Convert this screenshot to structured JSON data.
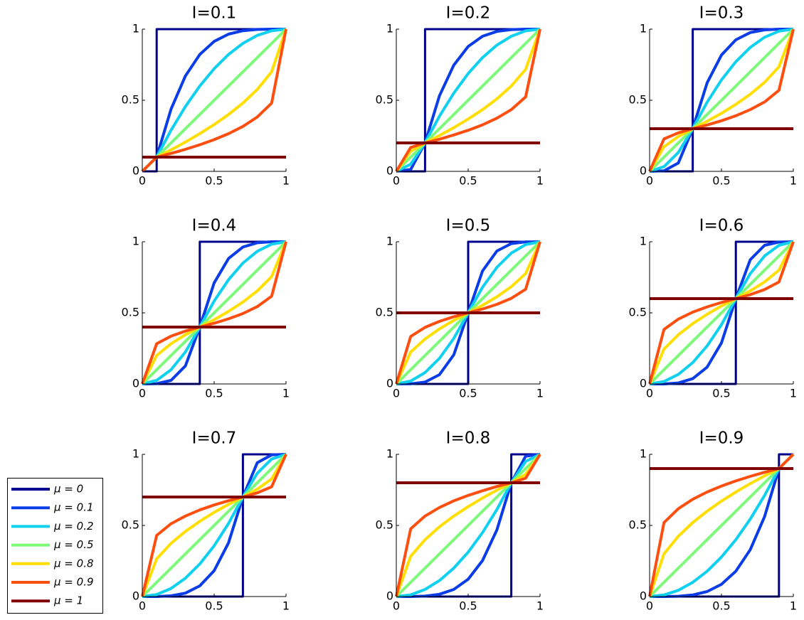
{
  "chart_data": [
    {
      "type": "line",
      "title": "I=0.1",
      "x": [
        0,
        0.1,
        0.2,
        0.3,
        0.4,
        0.5,
        0.6,
        0.7,
        0.8,
        0.9,
        1
      ],
      "xlim": [
        0,
        1
      ],
      "ylim": [
        0,
        1
      ],
      "xticks": [
        0,
        0.5,
        1
      ],
      "yticks": [
        0,
        0.5,
        1
      ],
      "series": [
        {
          "name": "μ = 0",
          "color": "#00008f",
          "x": [
            0,
            0.1,
            0.1,
            1
          ],
          "values": [
            0,
            0,
            1,
            1
          ]
        },
        {
          "name": "μ = 0.1",
          "color": "#0a3ce8",
          "values": [
            0,
            0.1,
            0.438,
            0.671,
            0.822,
            0.914,
            0.965,
            0.989,
            0.998,
            1,
            1
          ]
        },
        {
          "name": "μ = 0.2",
          "color": "#10d0f0",
          "values": [
            0,
            0.1,
            0.289,
            0.456,
            0.6,
            0.722,
            0.822,
            0.9,
            0.956,
            0.989,
            1
          ]
        },
        {
          "name": "μ = 0.5",
          "color": "#7dfa7a",
          "x": [
            0,
            1
          ],
          "values": [
            0,
            1
          ]
        },
        {
          "name": "μ = 0.8",
          "color": "#ffde00",
          "values": [
            0,
            0.1,
            0.151,
            0.206,
            0.265,
            0.329,
            0.4,
            0.48,
            0.576,
            0.7,
            1
          ]
        },
        {
          "name": "μ = 0.9",
          "color": "#ff4f10",
          "values": [
            0,
            0.1,
            0.126,
            0.155,
            0.187,
            0.223,
            0.265,
            0.316,
            0.382,
            0.48,
            1
          ]
        },
        {
          "name": "μ = 1",
          "color": "#800000",
          "x": [
            0,
            1
          ],
          "values": [
            0.1,
            0.1
          ]
        }
      ]
    },
    {
      "type": "line",
      "title": "I=0.2",
      "x": [
        0,
        0.1,
        0.2,
        0.3,
        0.4,
        0.5,
        0.6,
        0.7,
        0.8,
        0.9,
        1
      ],
      "xlim": [
        0,
        1
      ],
      "ylim": [
        0,
        1
      ],
      "xticks": [
        0,
        0.5,
        1
      ],
      "yticks": [
        0,
        0.5,
        1
      ],
      "series": [
        {
          "color": "#00008f",
          "x": [
            0,
            0.2,
            0.2,
            1
          ],
          "values": [
            0,
            0,
            1,
            1
          ]
        },
        {
          "color": "#0a3ce8",
          "values": [
            0,
            0.013,
            0.2,
            0.531,
            0.747,
            0.878,
            0.95,
            0.984,
            0.997,
            1,
            1
          ]
        },
        {
          "color": "#10d0f0",
          "values": [
            0,
            0.05,
            0.2,
            0.388,
            0.55,
            0.688,
            0.8,
            0.888,
            0.95,
            0.988,
            1
          ]
        },
        {
          "color": "#7dfa7a",
          "x": [
            0,
            1
          ],
          "values": [
            0,
            1
          ]
        },
        {
          "color": "#ffde00",
          "values": [
            0,
            0.141,
            0.2,
            0.252,
            0.307,
            0.368,
            0.434,
            0.51,
            0.6,
            0.717,
            1
          ]
        },
        {
          "color": "#ff4f10",
          "values": [
            0,
            0.168,
            0.2,
            0.226,
            0.256,
            0.289,
            0.327,
            0.374,
            0.434,
            0.524,
            1
          ]
        },
        {
          "color": "#800000",
          "x": [
            0,
            1
          ],
          "values": [
            0.2,
            0.2
          ]
        }
      ]
    },
    {
      "type": "line",
      "title": "I=0.3",
      "x": [
        0,
        0.1,
        0.2,
        0.3,
        0.4,
        0.5,
        0.6,
        0.7,
        0.8,
        0.9,
        1
      ],
      "xlim": [
        0,
        1
      ],
      "ylim": [
        0,
        1
      ],
      "xticks": [
        0,
        0.5,
        1
      ],
      "yticks": [
        0,
        0.5,
        1
      ],
      "series": [
        {
          "color": "#00008f",
          "x": [
            0,
            0.3,
            0.3,
            1
          ],
          "values": [
            0,
            0,
            1,
            1
          ]
        },
        {
          "color": "#0a3ce8",
          "values": [
            0,
            0.004,
            0.059,
            0.3,
            0.622,
            0.818,
            0.925,
            0.976,
            0.995,
            1,
            1
          ]
        },
        {
          "color": "#10d0f0",
          "values": [
            0,
            0.033,
            0.133,
            0.3,
            0.486,
            0.643,
            0.771,
            0.871,
            0.943,
            0.986,
            1
          ]
        },
        {
          "color": "#7dfa7a",
          "x": [
            0,
            1
          ],
          "values": [
            0,
            1
          ]
        },
        {
          "color": "#ffde00",
          "values": [
            0,
            0.173,
            0.245,
            0.3,
            0.352,
            0.408,
            0.471,
            0.542,
            0.626,
            0.735,
            1
          ]
        },
        {
          "color": "#ff4f10",
          "values": [
            0,
            0.228,
            0.271,
            0.3,
            0.326,
            0.356,
            0.391,
            0.434,
            0.488,
            0.57,
            1
          ]
        },
        {
          "color": "#800000",
          "x": [
            0,
            1
          ],
          "values": [
            0.3,
            0.3
          ]
        }
      ]
    },
    {
      "type": "line",
      "title": "I=0.4",
      "x": [
        0,
        0.1,
        0.2,
        0.3,
        0.4,
        0.5,
        0.6,
        0.7,
        0.8,
        0.9,
        1
      ],
      "xlim": [
        0,
        1
      ],
      "ylim": [
        0,
        1
      ],
      "xticks": [
        0,
        0.5,
        1
      ],
      "yticks": [
        0,
        0.5,
        1
      ],
      "series": [
        {
          "color": "#00008f",
          "x": [
            0,
            0.4,
            0.4,
            1
          ],
          "values": [
            0,
            0,
            1,
            1
          ]
        },
        {
          "color": "#0a3ce8",
          "values": [
            0,
            0.002,
            0.025,
            0.127,
            0.4,
            0.711,
            0.882,
            0.963,
            0.993,
            1,
            1
          ]
        },
        {
          "color": "#10d0f0",
          "values": [
            0,
            0.025,
            0.1,
            0.225,
            0.4,
            0.583,
            0.733,
            0.85,
            0.933,
            0.983,
            1
          ]
        },
        {
          "color": "#7dfa7a",
          "x": [
            0,
            1
          ],
          "values": [
            0,
            1
          ]
        },
        {
          "color": "#ffde00",
          "values": [
            0,
            0.2,
            0.283,
            0.346,
            0.4,
            0.452,
            0.51,
            0.576,
            0.654,
            0.755,
            1
          ]
        },
        {
          "color": "#ff4f10",
          "values": [
            0,
            0.283,
            0.336,
            0.372,
            0.4,
            0.427,
            0.458,
            0.495,
            0.544,
            0.617,
            1
          ]
        },
        {
          "color": "#800000",
          "x": [
            0,
            1
          ],
          "values": [
            0.4,
            0.4
          ]
        }
      ]
    },
    {
      "type": "line",
      "title": "I=0.5",
      "x": [
        0,
        0.1,
        0.2,
        0.3,
        0.4,
        0.5,
        0.6,
        0.7,
        0.8,
        0.9,
        1
      ],
      "xlim": [
        0,
        1
      ],
      "ylim": [
        0,
        1
      ],
      "xticks": [
        0,
        0.5,
        1
      ],
      "yticks": [
        0,
        0.5,
        1
      ],
      "series": [
        {
          "color": "#00008f",
          "x": [
            0,
            0.5,
            0.5,
            1
          ],
          "values": [
            0,
            0,
            1,
            1
          ]
        },
        {
          "color": "#0a3ce8",
          "values": [
            0,
            0.001,
            0.013,
            0.065,
            0.205,
            0.5,
            0.795,
            0.935,
            0.987,
            0.999,
            1
          ]
        },
        {
          "color": "#10d0f0",
          "values": [
            0,
            0.02,
            0.08,
            0.18,
            0.32,
            0.5,
            0.68,
            0.82,
            0.92,
            0.98,
            1
          ]
        },
        {
          "color": "#7dfa7a",
          "x": [
            0,
            1
          ],
          "values": [
            0,
            1
          ]
        },
        {
          "color": "#ffde00",
          "values": [
            0,
            0.224,
            0.316,
            0.387,
            0.447,
            0.5,
            0.553,
            0.613,
            0.684,
            0.776,
            1
          ]
        },
        {
          "color": "#ff4f10",
          "values": [
            0,
            0.334,
            0.398,
            0.44,
            0.473,
            0.5,
            0.527,
            0.56,
            0.602,
            0.666,
            1
          ]
        },
        {
          "color": "#800000",
          "x": [
            0,
            1
          ],
          "values": [
            0.5,
            0.5
          ]
        }
      ]
    },
    {
      "type": "line",
      "title": "I=0.6",
      "x": [
        0,
        0.1,
        0.2,
        0.3,
        0.4,
        0.5,
        0.6,
        0.7,
        0.8,
        0.9,
        1
      ],
      "xlim": [
        0,
        1
      ],
      "ylim": [
        0,
        1
      ],
      "xticks": [
        0,
        0.5,
        1
      ],
      "yticks": [
        0,
        0.5,
        1
      ],
      "series": [
        {
          "color": "#00008f",
          "x": [
            0,
            0.6,
            0.6,
            1
          ],
          "values": [
            0,
            0,
            1,
            1
          ]
        },
        {
          "color": "#0a3ce8",
          "values": [
            0,
            0,
            0.007,
            0.037,
            0.118,
            0.289,
            0.6,
            0.873,
            0.975,
            0.998,
            1
          ]
        },
        {
          "color": "#10d0f0",
          "values": [
            0,
            0.017,
            0.067,
            0.15,
            0.267,
            0.417,
            0.6,
            0.775,
            0.9,
            0.975,
            1
          ]
        },
        {
          "color": "#7dfa7a",
          "x": [
            0,
            1
          ],
          "values": [
            0,
            1
          ]
        },
        {
          "color": "#ffde00",
          "values": [
            0,
            0.245,
            0.346,
            0.424,
            0.49,
            0.548,
            0.6,
            0.654,
            0.717,
            0.8,
            1
          ]
        },
        {
          "color": "#ff4f10",
          "values": [
            0,
            0.383,
            0.456,
            0.505,
            0.542,
            0.573,
            0.6,
            0.628,
            0.664,
            0.717,
            1
          ]
        },
        {
          "color": "#800000",
          "x": [
            0,
            1
          ],
          "values": [
            0.6,
            0.6
          ]
        }
      ]
    },
    {
      "type": "line",
      "title": "I=0.7",
      "x": [
        0,
        0.1,
        0.2,
        0.3,
        0.4,
        0.5,
        0.6,
        0.7,
        0.8,
        0.9,
        1
      ],
      "xlim": [
        0,
        1
      ],
      "ylim": [
        0,
        1
      ],
      "xticks": [
        0,
        0.5,
        1
      ],
      "yticks": [
        0,
        0.5,
        1
      ],
      "series": [
        {
          "color": "#00008f",
          "x": [
            0,
            0.7,
            0.7,
            1
          ],
          "values": [
            0,
            0,
            1,
            1
          ]
        },
        {
          "color": "#0a3ce8",
          "values": [
            0,
            0,
            0.005,
            0.024,
            0.075,
            0.182,
            0.378,
            0.7,
            0.941,
            0.996,
            1
          ]
        },
        {
          "color": "#10d0f0",
          "values": [
            0,
            0.014,
            0.057,
            0.129,
            0.229,
            0.357,
            0.514,
            0.7,
            0.867,
            0.967,
            1
          ]
        },
        {
          "color": "#7dfa7a",
          "x": [
            0,
            1
          ],
          "values": [
            0,
            1
          ]
        },
        {
          "color": "#ffde00",
          "values": [
            0,
            0.265,
            0.374,
            0.458,
            0.529,
            0.592,
            0.648,
            0.7,
            0.755,
            0.827,
            1
          ]
        },
        {
          "color": "#ff4f10",
          "values": [
            0,
            0.43,
            0.512,
            0.566,
            0.609,
            0.644,
            0.674,
            0.7,
            0.729,
            0.772,
            1
          ]
        },
        {
          "color": "#800000",
          "x": [
            0,
            1
          ],
          "values": [
            0.7,
            0.7
          ]
        }
      ]
    },
    {
      "type": "line",
      "title": "I=0.8",
      "x": [
        0,
        0.1,
        0.2,
        0.3,
        0.4,
        0.5,
        0.6,
        0.7,
        0.8,
        0.9,
        1
      ],
      "xlim": [
        0,
        1
      ],
      "ylim": [
        0,
        1
      ],
      "xticks": [
        0,
        0.5,
        1
      ],
      "yticks": [
        0,
        0.5,
        1
      ],
      "series": [
        {
          "color": "#00008f",
          "x": [
            0,
            0.8,
            0.8,
            1
          ],
          "values": [
            0,
            0,
            1,
            1
          ]
        },
        {
          "color": "#0a3ce8",
          "values": [
            0,
            0,
            0.003,
            0.016,
            0.05,
            0.122,
            0.253,
            0.469,
            0.8,
            0.987,
            1
          ]
        },
        {
          "color": "#10d0f0",
          "values": [
            0,
            0.012,
            0.05,
            0.112,
            0.2,
            0.312,
            0.45,
            0.612,
            0.8,
            0.95,
            1
          ]
        },
        {
          "color": "#7dfa7a",
          "x": [
            0,
            1
          ],
          "values": [
            0,
            1
          ]
        },
        {
          "color": "#ffde00",
          "values": [
            0,
            0.283,
            0.4,
            0.49,
            0.566,
            0.632,
            0.693,
            0.748,
            0.8,
            0.859,
            1
          ]
        },
        {
          "color": "#ff4f10",
          "values": [
            0,
            0.476,
            0.566,
            0.626,
            0.673,
            0.711,
            0.744,
            0.774,
            0.8,
            0.832,
            1
          ]
        },
        {
          "color": "#800000",
          "x": [
            0,
            1
          ],
          "values": [
            0.8,
            0.8
          ]
        }
      ]
    },
    {
      "type": "line",
      "title": "I=0.9",
      "x": [
        0,
        0.1,
        0.2,
        0.3,
        0.4,
        0.5,
        0.6,
        0.7,
        0.8,
        0.9,
        1
      ],
      "xlim": [
        0,
        1
      ],
      "ylim": [
        0,
        1
      ],
      "xticks": [
        0,
        0.5,
        1
      ],
      "yticks": [
        0,
        0.5,
        1
      ],
      "series": [
        {
          "color": "#00008f",
          "x": [
            0,
            0.9,
            0.9,
            1
          ],
          "values": [
            0,
            0,
            1,
            1
          ]
        },
        {
          "color": "#0a3ce8",
          "values": [
            0,
            0,
            0.002,
            0.011,
            0.035,
            0.086,
            0.178,
            0.329,
            0.562,
            0.9,
            1
          ]
        },
        {
          "color": "#10d0f0",
          "values": [
            0,
            0.011,
            0.044,
            0.1,
            0.178,
            0.278,
            0.4,
            0.544,
            0.711,
            0.9,
            1
          ]
        },
        {
          "color": "#7dfa7a",
          "x": [
            0,
            1
          ],
          "values": [
            0,
            1
          ]
        },
        {
          "color": "#ffde00",
          "values": [
            0,
            0.3,
            0.424,
            0.52,
            0.6,
            0.671,
            0.735,
            0.794,
            0.849,
            0.9,
            1
          ]
        },
        {
          "color": "#ff4f10",
          "values": [
            0,
            0.52,
            0.618,
            0.684,
            0.735,
            0.777,
            0.813,
            0.845,
            0.874,
            0.9,
            1
          ]
        },
        {
          "color": "#800000",
          "x": [
            0,
            1
          ],
          "values": [
            0.9,
            0.9
          ]
        }
      ]
    }
  ]
}
